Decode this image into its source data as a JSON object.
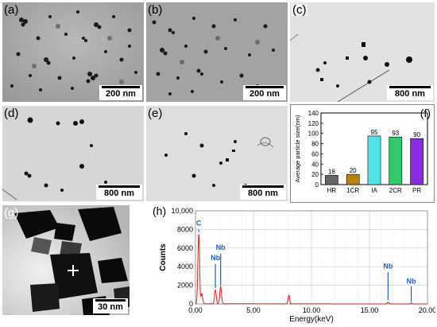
{
  "panels": {
    "a": {
      "label": "(a)",
      "scale": "200 nm"
    },
    "b": {
      "label": "(b)",
      "scale": "200 nm"
    },
    "c": {
      "label": "(c)",
      "scale": "800 nm"
    },
    "d": {
      "label": "(d)",
      "scale": "800 nm"
    },
    "e": {
      "label": "(e)",
      "scale": "800 nm"
    },
    "f": {
      "label": "(f)"
    },
    "g": {
      "label": "(g)",
      "scale": "30 nm"
    },
    "h": {
      "label": "(h)"
    }
  },
  "chart_data": [
    {
      "type": "bar",
      "title": "",
      "ylabel": "Average particle size(nm)",
      "xlabel": "",
      "categories": [
        "HR",
        "1CR",
        "IA",
        "2CR",
        "PR"
      ],
      "values": [
        18,
        20,
        95,
        93,
        90
      ],
      "data_labels": [
        "18",
        "20",
        "95",
        "93",
        "90"
      ],
      "colors": [
        "#555555",
        "#b8860b",
        "#4fe3e8",
        "#33c86a",
        "#8a2be2"
      ],
      "ylim": [
        0,
        140
      ],
      "yticks": [
        "0",
        "20",
        "40",
        "60",
        "80",
        "100",
        "120",
        "140"
      ]
    },
    {
      "type": "line",
      "title": "",
      "xlabel": "Energy(keV)",
      "ylabel": "Counts",
      "xlim": [
        0,
        20
      ],
      "ylim": [
        0,
        10000
      ],
      "xticks": [
        "0.00",
        "5.00",
        "10.00",
        "15.00",
        "20.00"
      ],
      "yticks": [
        "0",
        "2000",
        "4000",
        "6000",
        "8000",
        "10,000"
      ],
      "grid": true,
      "line_color": "#e02020",
      "peaks": [
        {
          "x": 0.28,
          "y": 7600
        },
        {
          "x": 0.55,
          "y": 1100
        },
        {
          "x": 1.72,
          "y": 1500
        },
        {
          "x": 2.17,
          "y": 1900
        },
        {
          "x": 8.05,
          "y": 950
        },
        {
          "x": 16.6,
          "y": 200
        },
        {
          "x": 18.6,
          "y": 80
        }
      ],
      "annotations": [
        {
          "text": "C",
          "x": 0.28,
          "y": 8400,
          "line_from": 7700,
          "line_to": 8000
        },
        {
          "text": "Nb",
          "x": 1.72,
          "y": 4700,
          "line_from": 1700,
          "line_to": 4300
        },
        {
          "text": "Nb",
          "x": 2.17,
          "y": 5800,
          "line_from": 2000,
          "line_to": 5400
        },
        {
          "text": "Nb",
          "x": 16.6,
          "y": 3800,
          "line_from": 400,
          "line_to": 3400
        },
        {
          "text": "Nb",
          "x": 18.6,
          "y": 2200,
          "line_from": 200,
          "line_to": 1900
        }
      ]
    }
  ]
}
